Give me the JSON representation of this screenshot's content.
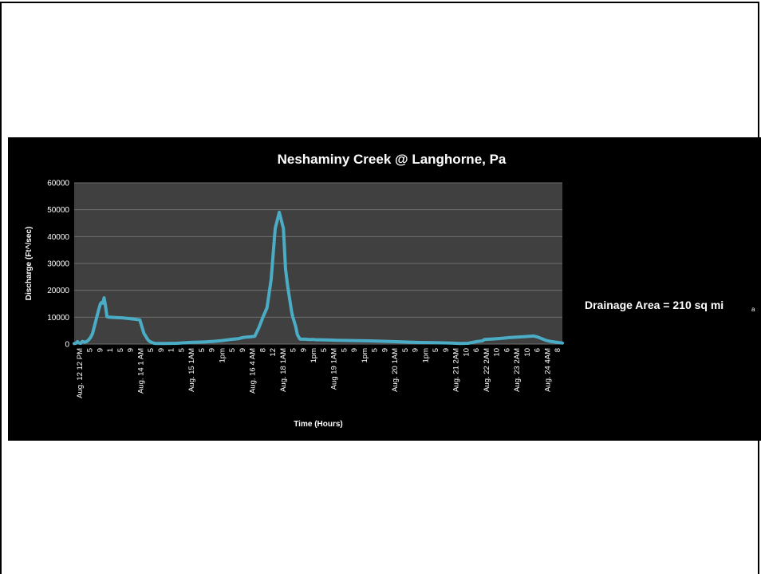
{
  "colors": {
    "background": "#ffffff",
    "panel": "#000000",
    "plot_area": "#404040",
    "gridline": "#6e6e6e",
    "series": "#4bacc6",
    "text": "#ffffff"
  },
  "annotation": {
    "drainage_area": "Drainage Area = 210 sq mi",
    "fragment": "a"
  },
  "chart_data": {
    "type": "line",
    "title": "Neshaminy Creek @ Langhorne, Pa",
    "xlabel": "Time (Hours)",
    "ylabel": "Discharge (Ft^/sec)",
    "ylim": [
      0,
      60000
    ],
    "yticks": [
      0,
      10000,
      20000,
      30000,
      40000,
      50000,
      60000
    ],
    "grid": true,
    "legend": "none",
    "x_tick_labels": [
      "Aug. 12 12 PM",
      "5",
      "9",
      "1",
      "5",
      "9",
      "Aug. 14 1 AM",
      "5",
      "9",
      "1",
      "5",
      "Aug. 15 1AM",
      "5",
      "9",
      "1pm",
      "5",
      "9",
      "Aug. 16 4 AM",
      "8",
      "12",
      "Aug. 18 1AM",
      "5",
      "9",
      "1pm",
      "5",
      "Aug 19 1AM",
      "5",
      "9",
      "1pm",
      "5",
      "9",
      "Aug. 20 1AM",
      "5",
      "9",
      "1pm",
      "5",
      "9",
      "Aug. 21 2AM",
      "10",
      "6",
      "Aug. 22 2AM",
      "10",
      "6",
      "Aug. 23 2AM",
      "10",
      "6",
      "Aug. 24 4AM",
      "8"
    ],
    "series": [
      {
        "x": [
          0,
          0.4,
          0.8,
          1.2,
          1.6,
          2,
          2.5,
          3,
          3.5,
          4,
          4.5,
          5,
          5.5,
          6,
          6.4,
          6.7,
          7,
          7.3,
          7.6,
          8,
          8.5,
          10,
          12,
          14,
          15,
          16,
          17,
          18,
          18.5,
          19,
          19.5,
          20,
          21,
          22,
          25,
          28,
          30,
          32,
          34,
          36,
          38,
          40,
          41,
          42,
          43,
          44,
          45,
          46,
          47,
          48,
          49,
          50,
          51,
          51.5,
          52,
          52.5,
          53,
          53.3,
          53.6,
          54,
          54.4,
          55,
          55.5,
          56,
          56.5,
          57,
          57.5,
          58,
          58.5,
          59,
          60,
          62,
          64,
          68,
          72,
          76,
          80,
          84,
          88,
          92,
          94,
          96,
          97,
          98,
          98.5,
          99,
          99.5,
          100,
          102,
          104,
          106,
          110,
          112,
          113,
          114,
          115,
          116,
          117,
          118,
          119
        ],
        "values": [
          200,
          300,
          900,
          400,
          300,
          1000,
          700,
          900,
          1500,
          2500,
          4000,
          7000,
          10000,
          13000,
          15000,
          15500,
          15200,
          17200,
          14500,
          10200,
          10000,
          9900,
          9700,
          9400,
          9200,
          9000,
          4000,
          1500,
          900,
          600,
          300,
          200,
          200,
          200,
          300,
          600,
          700,
          800,
          1000,
          1300,
          1700,
          2000,
          2400,
          2600,
          2700,
          2900,
          6000,
          10000,
          13500,
          24000,
          43000,
          49000,
          43000,
          28000,
          22000,
          17000,
          12000,
          10000,
          8500,
          6500,
          3500,
          1900,
          1800,
          1800,
          1800,
          1700,
          1700,
          1700,
          1700,
          1600,
          1600,
          1500,
          1400,
          1300,
          1200,
          1000,
          800,
          600,
          500,
          400,
          200,
          300,
          600,
          900,
          1000,
          1100,
          1200,
          1700,
          1900,
          2100,
          2400,
          2800,
          3000,
          2600,
          2000,
          1400,
          1000,
          800,
          600,
          400
        ]
      }
    ]
  }
}
